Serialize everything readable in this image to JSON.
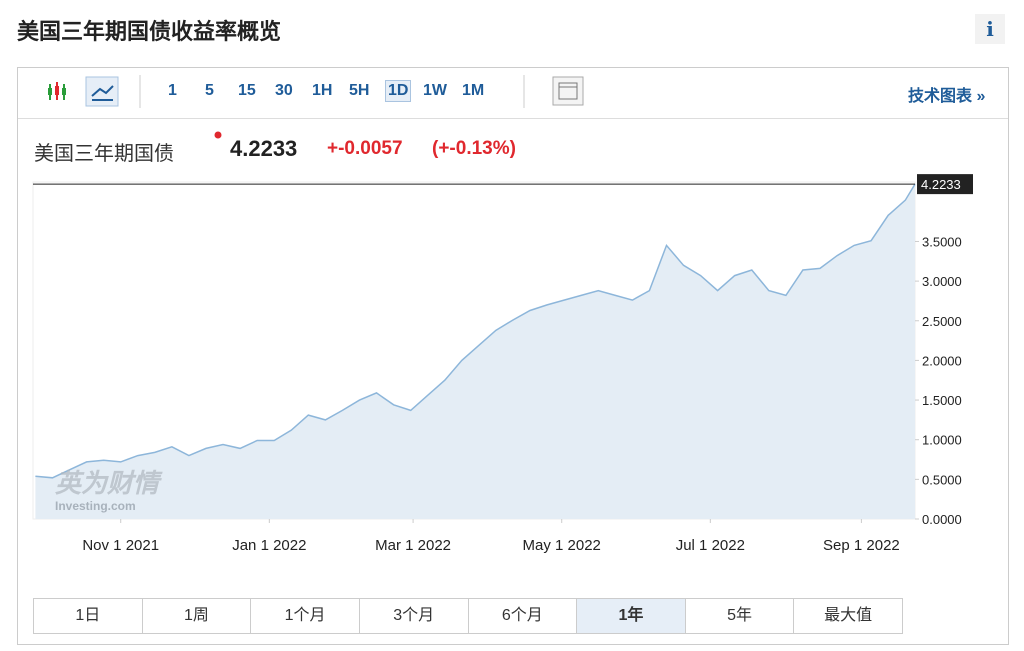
{
  "header": {
    "title": "美国三年期国债收益率概览",
    "info": "i"
  },
  "toolbar": {
    "intervals": [
      "1",
      "5",
      "15",
      "30",
      "1H",
      "5H",
      "1D",
      "1W",
      "1M"
    ],
    "active": "1D",
    "link": "技术图表 »"
  },
  "quote": {
    "name": "美国三年期国债",
    "price": "4.2233",
    "change": "+-0.0057",
    "percent": "(+-0.13%)"
  },
  "chart_data": {
    "type": "area",
    "color": "#8db6da",
    "fill": "#e4edf5",
    "watermark": {
      "brand": "英为财情",
      "site": "Investing.com"
    },
    "x": [
      "2021-09-27",
      "2021-10-04",
      "2021-10-11",
      "2021-10-18",
      "2021-10-25",
      "2021-11-01",
      "2021-11-08",
      "2021-11-15",
      "2021-11-22",
      "2021-11-29",
      "2021-12-06",
      "2021-12-13",
      "2021-12-20",
      "2021-12-27",
      "2022-01-03",
      "2022-01-10",
      "2022-01-17",
      "2022-01-24",
      "2022-01-31",
      "2022-02-07",
      "2022-02-14",
      "2022-02-21",
      "2022-02-28",
      "2022-03-07",
      "2022-03-14",
      "2022-03-21",
      "2022-03-28",
      "2022-04-04",
      "2022-04-11",
      "2022-04-18",
      "2022-04-25",
      "2022-05-02",
      "2022-05-09",
      "2022-05-16",
      "2022-05-23",
      "2022-05-30",
      "2022-06-06",
      "2022-06-13",
      "2022-06-20",
      "2022-06-27",
      "2022-07-04",
      "2022-07-11",
      "2022-07-18",
      "2022-07-25",
      "2022-08-01",
      "2022-08-08",
      "2022-08-15",
      "2022-08-22",
      "2022-08-29",
      "2022-09-05",
      "2022-09-12",
      "2022-09-19",
      "2022-09-23"
    ],
    "values": [
      0.54,
      0.52,
      0.62,
      0.72,
      0.74,
      0.72,
      0.8,
      0.84,
      0.91,
      0.8,
      0.89,
      0.94,
      0.89,
      0.99,
      0.99,
      1.12,
      1.31,
      1.25,
      1.37,
      1.5,
      1.59,
      1.44,
      1.37,
      1.56,
      1.75,
      2.0,
      2.19,
      2.38,
      2.51,
      2.63,
      2.7,
      2.76,
      2.82,
      2.88,
      2.82,
      2.76,
      2.88,
      3.45,
      3.2,
      3.07,
      2.88,
      3.07,
      3.14,
      2.88,
      2.82,
      3.14,
      3.16,
      3.32,
      3.45,
      3.51,
      3.83,
      4.02,
      4.2233
    ],
    "xlim": [
      "2021-09-26",
      "2022-09-23"
    ],
    "xticks": [
      {
        "value": "2021-11-01",
        "label": "Nov 1 2021"
      },
      {
        "value": "2022-01-01",
        "label": "Jan 1 2022"
      },
      {
        "value": "2022-03-01",
        "label": "Mar 1 2022"
      },
      {
        "value": "2022-05-01",
        "label": "May 1 2022"
      },
      {
        "value": "2022-07-01",
        "label": "Jul 1 2022"
      },
      {
        "value": "2022-09-01",
        "label": "Sep 1 2022"
      }
    ],
    "ylim": [
      0,
      4.25
    ],
    "yticks": [
      {
        "value": 0,
        "label": "0.0000"
      },
      {
        "value": 0.5,
        "label": "0.5000"
      },
      {
        "value": 1,
        "label": "1.0000"
      },
      {
        "value": 1.5,
        "label": "1.5000"
      },
      {
        "value": 2,
        "label": "2.0000"
      },
      {
        "value": 2.5,
        "label": "2.5000"
      },
      {
        "value": 3,
        "label": "3.0000"
      },
      {
        "value": 3.5,
        "label": "3.5000"
      }
    ]
  },
  "ranges": {
    "buttons": [
      "1日",
      "1周",
      "1个月",
      "3个月",
      "6个月",
      "1年",
      "5年",
      "最大值"
    ],
    "active": "1年"
  }
}
